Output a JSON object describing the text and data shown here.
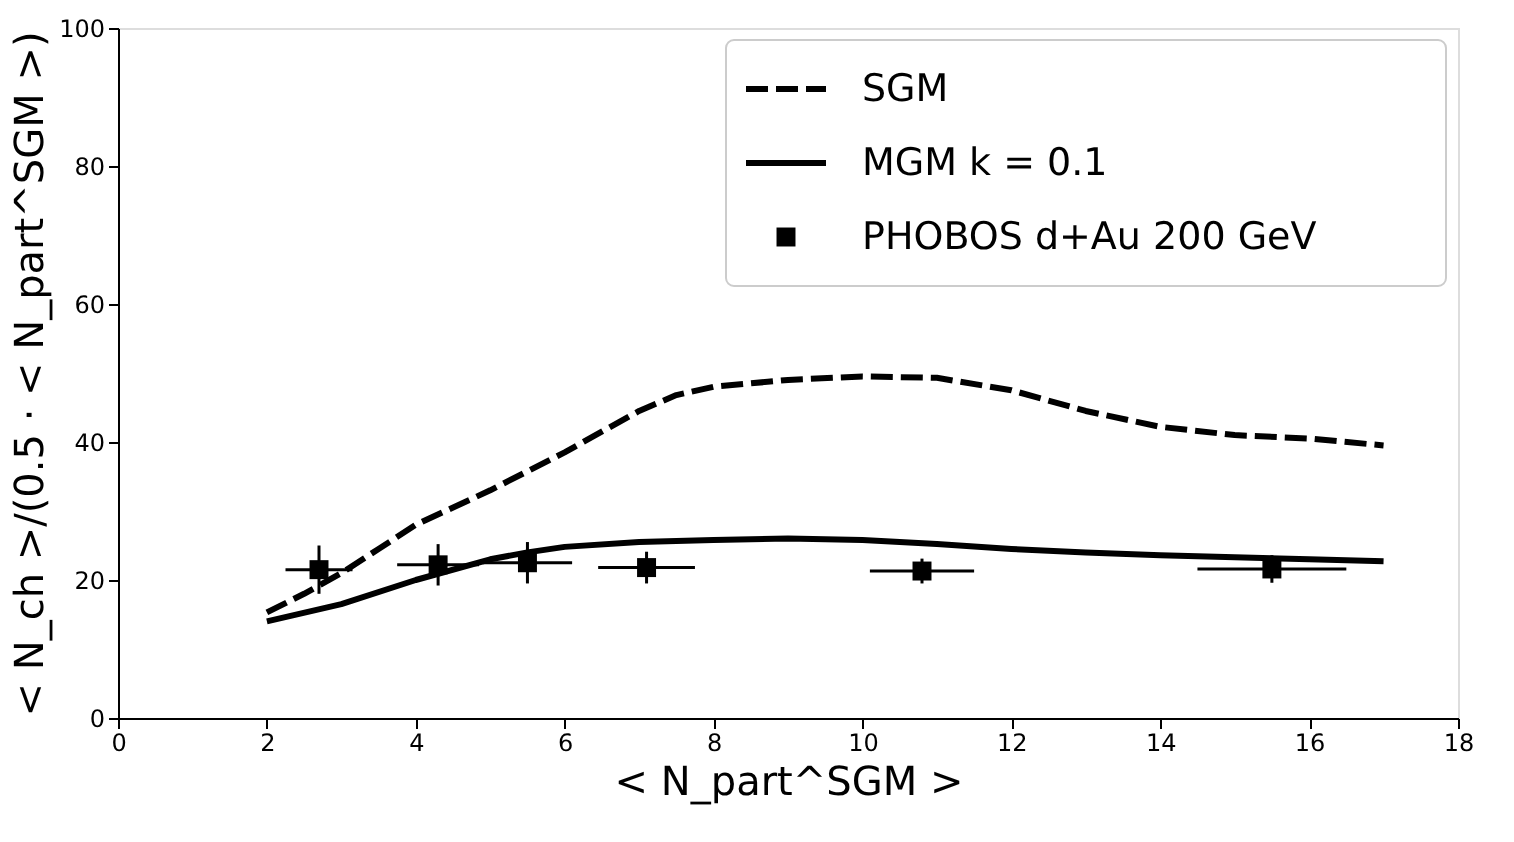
{
  "chart_data": {
    "type": "line",
    "xlabel": "< N_part^SGM >",
    "ylabel": "< N_ch >/(0.5 · < N_part^SGM >)",
    "xlim": [
      0,
      18
    ],
    "xticks": [
      0,
      2,
      4,
      6,
      8,
      10,
      12,
      14,
      16,
      18
    ],
    "ylim": [
      0,
      100
    ],
    "yticks": [
      0,
      20,
      40,
      60,
      80,
      100
    ],
    "grid": false,
    "legend": "top right",
    "series": [
      {
        "name": "SGM",
        "line_style": "dashed",
        "color": "#000000",
        "x": [
          2,
          2.5,
          3,
          3.5,
          4,
          5,
          6,
          7,
          7.5,
          8,
          9,
          10,
          11,
          12,
          13,
          14,
          15,
          16,
          17
        ],
        "values": [
          15.3,
          18,
          21,
          24.5,
          28,
          33,
          38.5,
          44.5,
          46.8,
          48,
          49,
          49.5,
          49.3,
          47.5,
          44.5,
          42.2,
          41,
          40.5,
          39.5
        ]
      },
      {
        "name": "MGM k = 0.1",
        "line_style": "solid",
        "color": "#000000",
        "x": [
          2,
          3,
          4,
          5,
          5.5,
          6,
          7,
          8,
          9,
          10,
          11,
          12,
          13,
          14,
          15,
          16,
          17
        ],
        "values": [
          14,
          16.5,
          20,
          23,
          24,
          24.8,
          25.5,
          25.8,
          26,
          25.8,
          25.2,
          24.5,
          24,
          23.6,
          23.3,
          23,
          22.7
        ]
      },
      {
        "name": "PHOBOS d+Au 200 GeV",
        "type": "scatter",
        "marker": "square",
        "color": "#000000",
        "x": [
          2.7,
          4.3,
          5.5,
          7.1,
          10.8,
          15.5
        ],
        "values": [
          21.5,
          22.2,
          22.5,
          21.8,
          21.3,
          21.6
        ],
        "errors": [
          3.5,
          3,
          3,
          2.3,
          1.8,
          2
        ],
        "xerrors": [
          0.45,
          0.55,
          0.6,
          0.65,
          0.7,
          1.0
        ]
      }
    ]
  }
}
